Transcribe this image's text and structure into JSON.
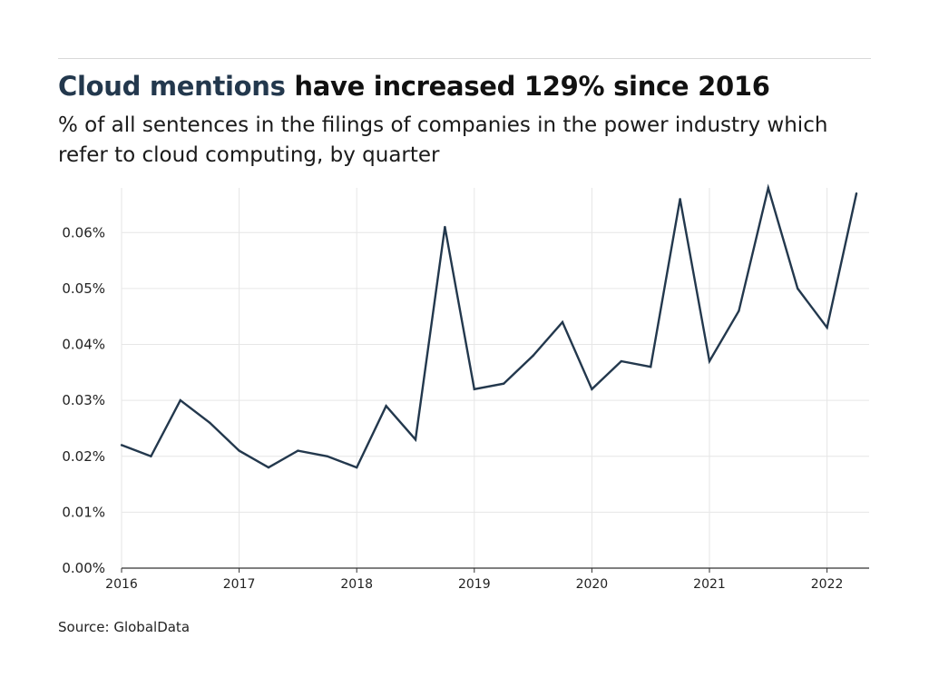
{
  "header": {
    "title_highlight": "Cloud mentions",
    "title_rest": " have increased 129% since 2016",
    "subtitle": "% of all sentences in the filings of companies in the power industry which refer to cloud computing, by quarter"
  },
  "footer": {
    "source": "Source: GlobalData"
  },
  "colors": {
    "line": "#23384d",
    "grid": "#e6e6e6",
    "axis": "#333333",
    "highlight": "#23384d"
  },
  "chart_data": {
    "type": "line",
    "title": "Cloud mentions have increased 129% since 2016",
    "subtitle": "% of all sentences in the filings of companies in the power industry which refer to cloud computing, by quarter",
    "xlabel": "",
    "ylabel": "",
    "x": [
      "2016 Q1",
      "2016 Q2",
      "2016 Q3",
      "2016 Q4",
      "2017 Q1",
      "2017 Q2",
      "2017 Q3",
      "2017 Q4",
      "2018 Q1",
      "2018 Q2",
      "2018 Q3",
      "2018 Q4",
      "2019 Q1",
      "2019 Q2",
      "2019 Q3",
      "2019 Q4",
      "2020 Q1",
      "2020 Q2",
      "2020 Q3",
      "2020 Q4",
      "2021 Q1",
      "2021 Q2",
      "2021 Q3",
      "2021 Q4",
      "2022 Q1",
      "2022 Q2"
    ],
    "series": [
      {
        "values": [
          0.022,
          0.02,
          0.03,
          0.026,
          0.021,
          0.018,
          0.021,
          0.02,
          0.018,
          0.029,
          0.023,
          0.061,
          0.032,
          0.033,
          0.038,
          0.044,
          0.032,
          0.037,
          0.036,
          0.066,
          0.037,
          0.046,
          0.068,
          0.05,
          0.043,
          0.067
        ]
      }
    ],
    "xticks": [
      "2016",
      "2017",
      "2018",
      "2019",
      "2020",
      "2021",
      "2022"
    ],
    "yticks": [
      "0.00%",
      "0.01%",
      "0.02%",
      "0.03%",
      "0.04%",
      "0.05%",
      "0.06%"
    ],
    "ytick_values": [
      0,
      0.01,
      0.02,
      0.03,
      0.04,
      0.05,
      0.06
    ],
    "ylim": [
      0,
      0.068
    ],
    "grid": true
  }
}
